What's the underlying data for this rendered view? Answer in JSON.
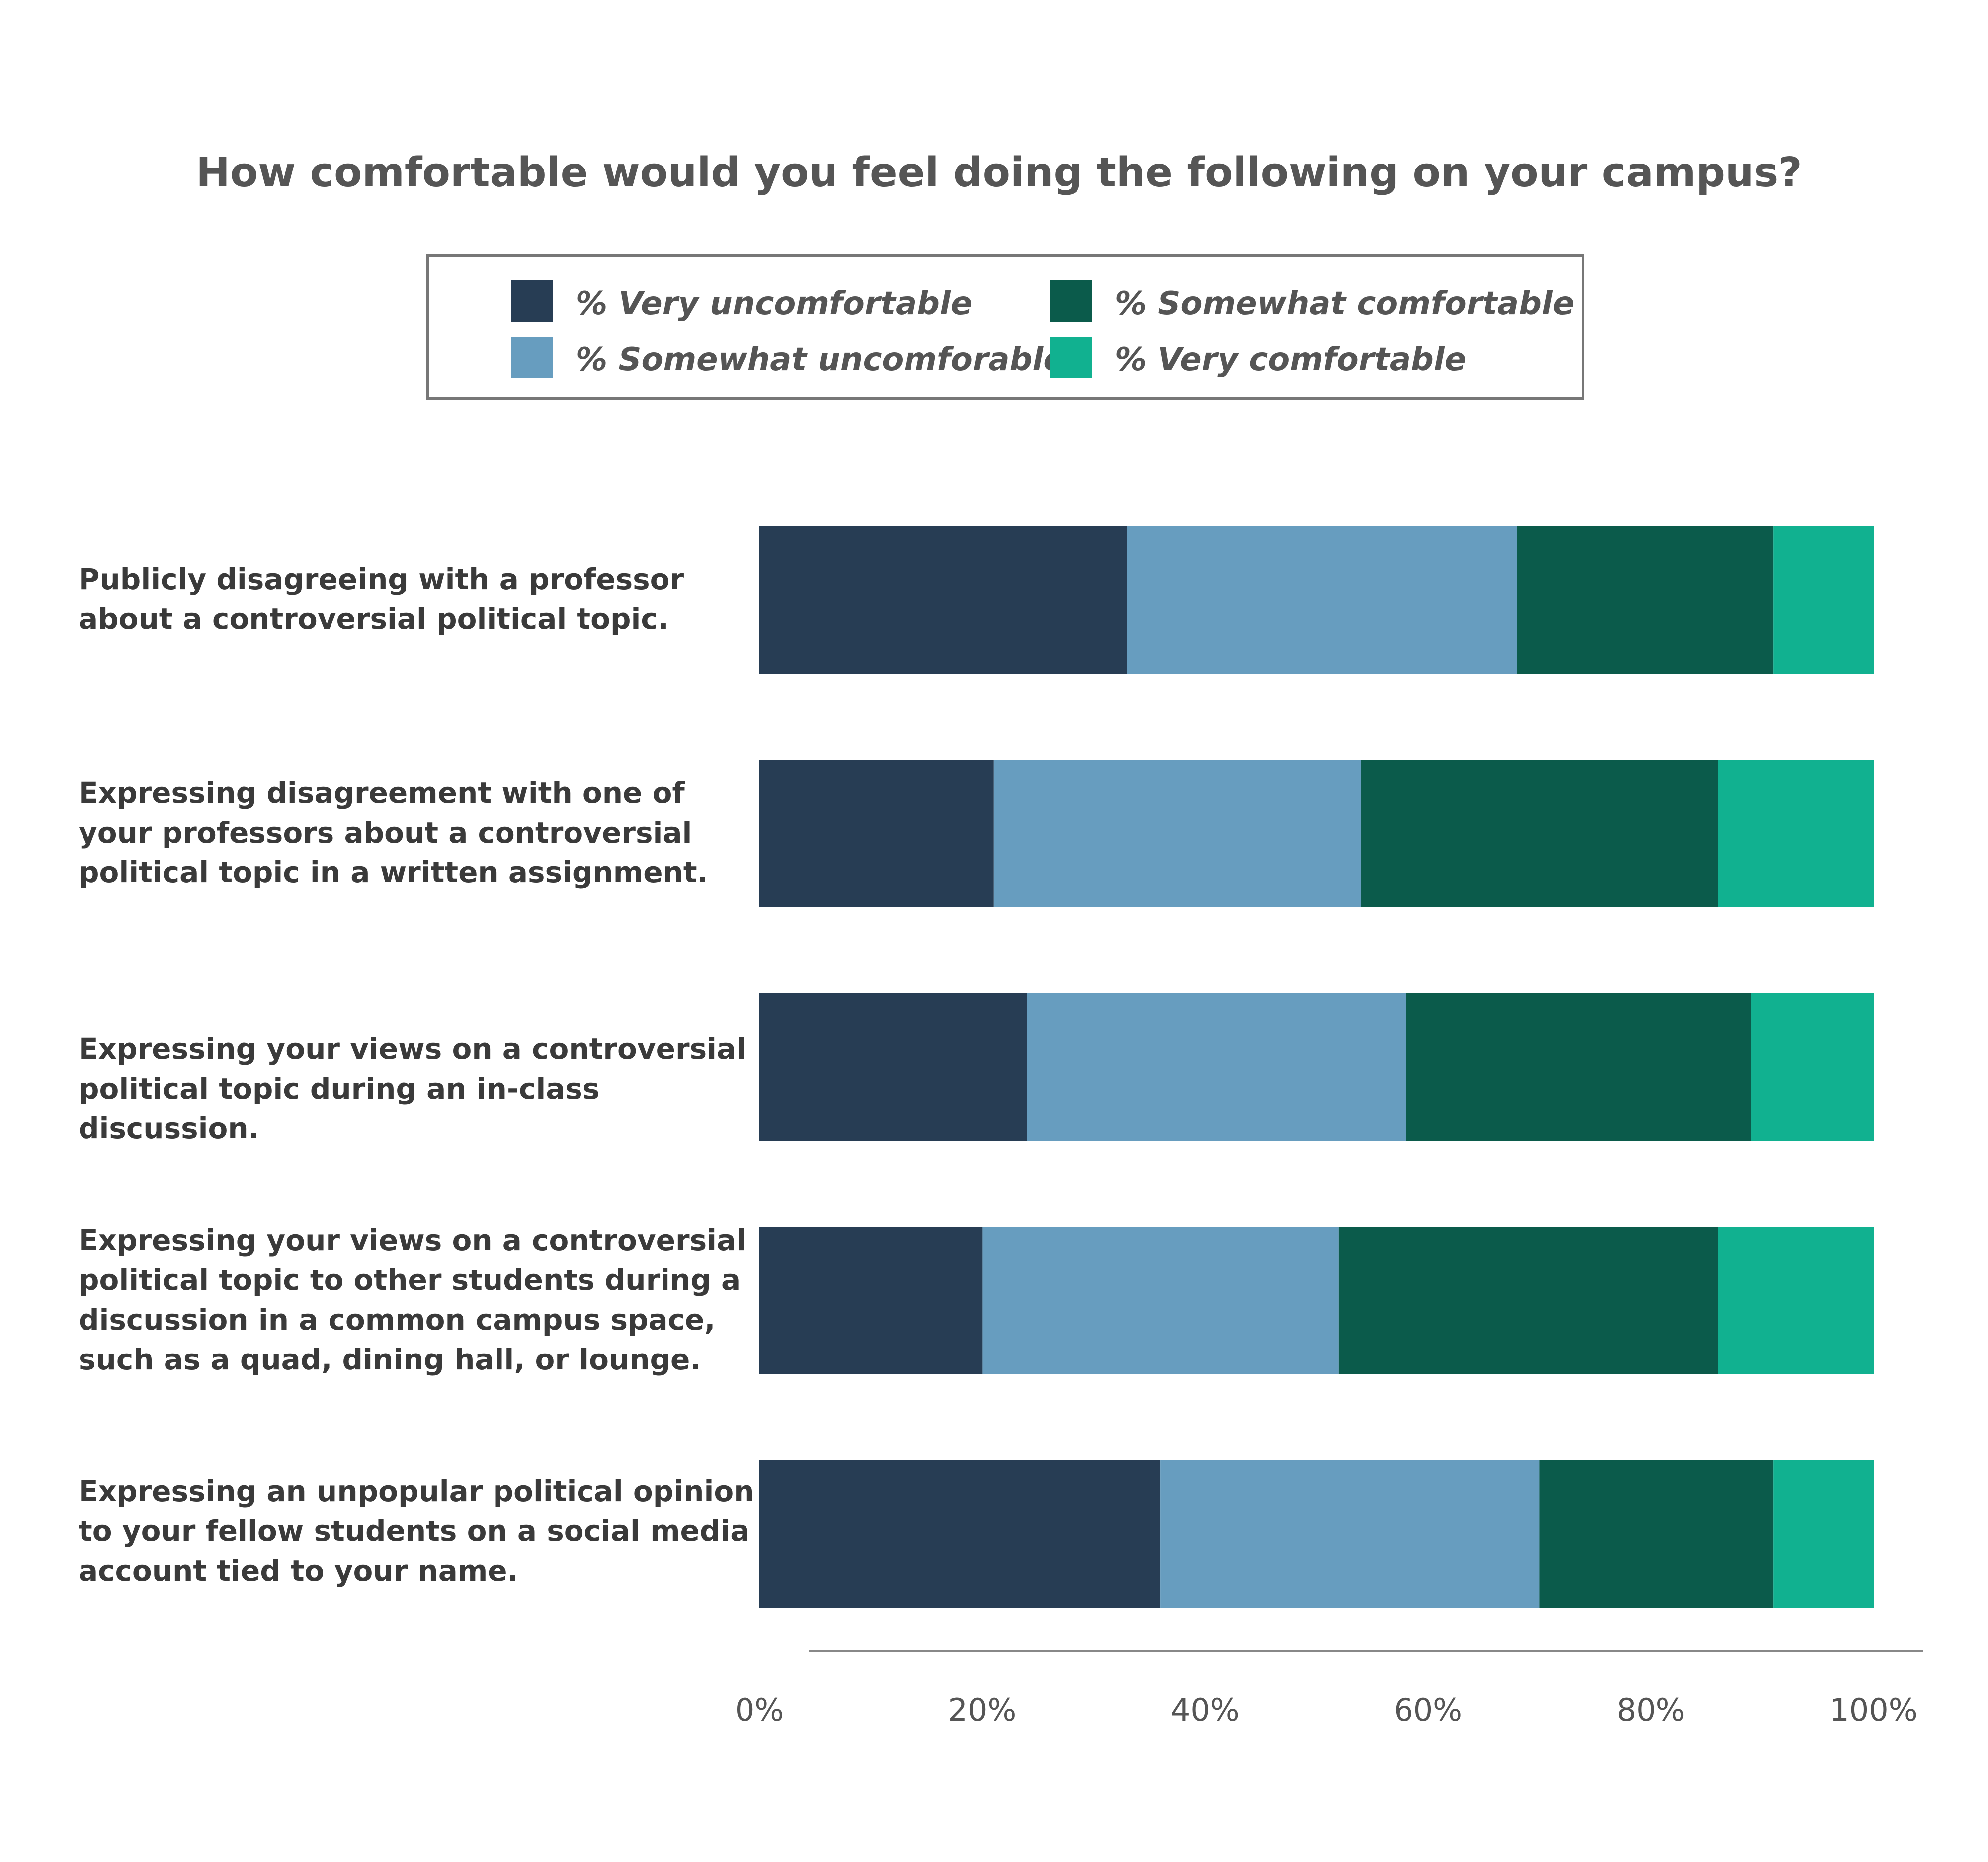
{
  "chart_data": {
    "type": "bar",
    "orientation": "horizontal",
    "stacked": true,
    "title": "How comfortable would you feel doing the following on your campus?",
    "categories": [
      "Publicly disagreeing with a professor about a controversial political topic.",
      "Expressing disagreement with one of your professors about a controversial political topic in a written assignment.",
      "Expressing your views on a controversial political topic during an in-class discussion.",
      "Expressing your views on a controversial political topic to other students during a discussion in a common campus space, such as a quad, dining hall, or lounge.",
      "Expressing an unpopular political opinion to your fellow students on a social media account tied to your name."
    ],
    "series": [
      {
        "name": "% Very uncomfortable",
        "color": "#273D54",
        "values": [
          33,
          21,
          24,
          20,
          36
        ]
      },
      {
        "name": "% Somewhat uncomforable",
        "color": "#679DBF",
        "values": [
          35,
          33,
          34,
          32,
          34
        ]
      },
      {
        "name": "% Somewhat comfortable",
        "color": "#0B5B4B",
        "values": [
          23,
          32,
          31,
          34,
          21
        ]
      },
      {
        "name": "% Very comfortable",
        "color": "#11B190",
        "values": [
          9,
          14,
          11,
          14,
          9
        ]
      }
    ],
    "xlim": [
      0,
      100
    ],
    "xticks": [
      "0%",
      "20%",
      "40%",
      "60%",
      "80%",
      "100%"
    ],
    "xlabel": "",
    "ylabel": "",
    "legend": "top-center"
  }
}
